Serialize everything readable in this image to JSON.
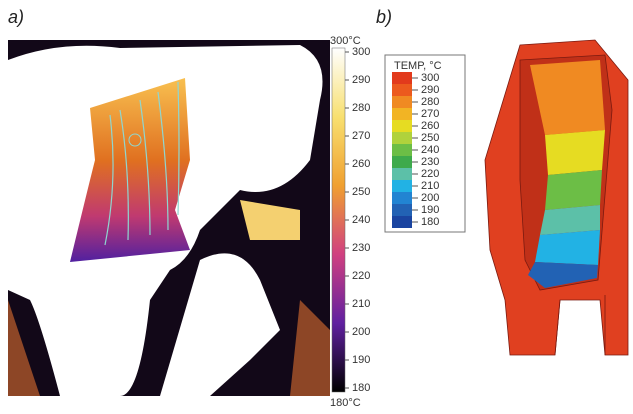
{
  "panel_a": {
    "label": "a)",
    "scale_max_label": "300°C",
    "scale_min_label": "180°C",
    "scale_ticks": [
      300,
      290,
      280,
      270,
      260,
      250,
      240,
      230,
      220,
      210,
      200,
      190,
      180
    ]
  },
  "panel_b": {
    "label": "b)",
    "legend_title": "TEMP, °C",
    "legend_entries": [
      {
        "value": 300,
        "color": "#e23a1c"
      },
      {
        "value": 290,
        "color": "#ec5a1e"
      },
      {
        "value": 280,
        "color": "#f08a22"
      },
      {
        "value": 270,
        "color": "#f2b424"
      },
      {
        "value": 260,
        "color": "#e6dc22"
      },
      {
        "value": 250,
        "color": "#b0d23c"
      },
      {
        "value": 240,
        "color": "#6cbe46"
      },
      {
        "value": 230,
        "color": "#3eaa4c"
      },
      {
        "value": 220,
        "color": "#5cc0a8"
      },
      {
        "value": 210,
        "color": "#22b2e4"
      },
      {
        "value": 200,
        "color": "#2284d2"
      },
      {
        "value": 190,
        "color": "#2262b4"
      },
      {
        "value": 180,
        "color": "#1a44a0"
      }
    ]
  }
}
